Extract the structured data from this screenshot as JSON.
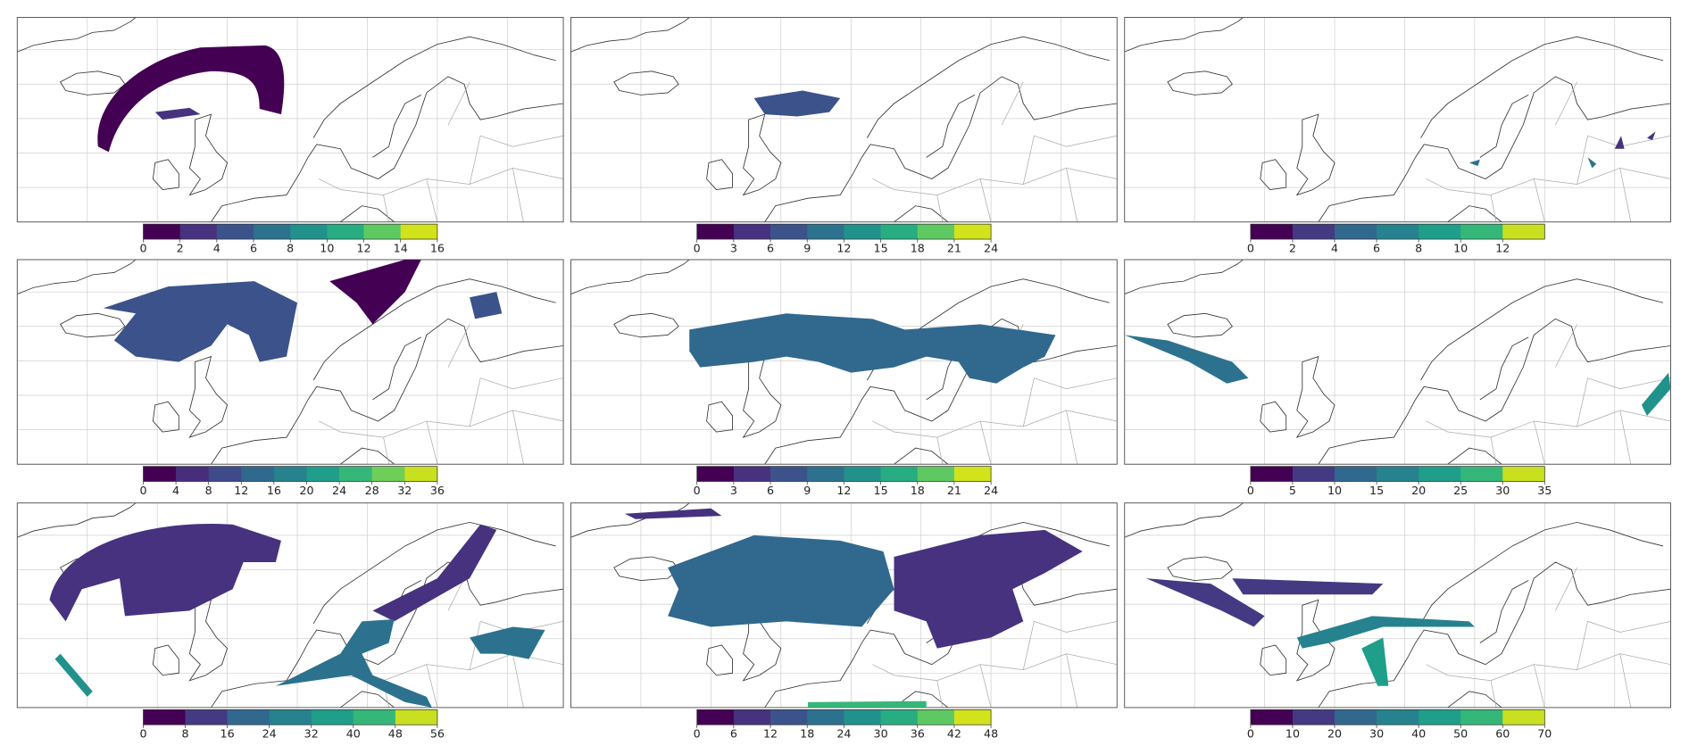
{
  "panels": [
    {
      "colorbar": {
        "lim": [
          0,
          16
        ],
        "ticks": [
          0,
          2,
          4,
          6,
          8,
          10,
          12,
          14,
          16
        ],
        "colors": [
          "#440154",
          "#46327e",
          "#3b528b",
          "#2c728e",
          "#21918c",
          "#27ad81",
          "#5ec962",
          "#d2e21b"
        ]
      }
    },
    {
      "colorbar": {
        "lim": [
          0,
          24
        ],
        "ticks": [
          0,
          3,
          6,
          9,
          12,
          15,
          18,
          21,
          24
        ],
        "colors": [
          "#440154",
          "#46327e",
          "#3b528b",
          "#2c728e",
          "#21918c",
          "#27ad81",
          "#5ec962",
          "#d2e21b"
        ]
      }
    },
    {
      "colorbar": {
        "lim": [
          0,
          14
        ],
        "ticks": [
          0,
          2,
          4,
          6,
          8,
          10,
          12
        ],
        "colors": [
          "#440154",
          "#443a83",
          "#31688e",
          "#26828e",
          "#1f9e89",
          "#35b779",
          "#c8e020"
        ]
      }
    },
    {
      "colorbar": {
        "lim": [
          0,
          36
        ],
        "ticks": [
          0,
          4,
          8,
          12,
          16,
          20,
          24,
          28,
          32,
          36
        ],
        "colors": [
          "#440154",
          "#472d7b",
          "#3e4a89",
          "#31688e",
          "#26828e",
          "#1f9e89",
          "#35b779",
          "#6ece58",
          "#c8e020"
        ]
      }
    },
    {
      "colorbar": {
        "lim": [
          0,
          24
        ],
        "ticks": [
          0,
          3,
          6,
          9,
          12,
          15,
          18,
          21,
          24
        ],
        "colors": [
          "#440154",
          "#46327e",
          "#3b528b",
          "#2c728e",
          "#21918c",
          "#27ad81",
          "#5ec962",
          "#d2e21b"
        ]
      }
    },
    {
      "colorbar": {
        "lim": [
          0,
          35
        ],
        "ticks": [
          0,
          5,
          10,
          15,
          20,
          25,
          30,
          35
        ],
        "colors": [
          "#440154",
          "#443a83",
          "#31688e",
          "#26828e",
          "#1f9e89",
          "#35b779",
          "#c8e020"
        ]
      }
    },
    {
      "colorbar": {
        "lim": [
          0,
          56
        ],
        "ticks": [
          0,
          8,
          16,
          24,
          32,
          40,
          48,
          56
        ],
        "colors": [
          "#440154",
          "#443a83",
          "#31688e",
          "#26828e",
          "#1f9e89",
          "#35b779",
          "#c8e020"
        ]
      }
    },
    {
      "colorbar": {
        "lim": [
          0,
          48
        ],
        "ticks": [
          0,
          6,
          12,
          18,
          24,
          30,
          36,
          42,
          48
        ],
        "colors": [
          "#440154",
          "#46327e",
          "#3b528b",
          "#2c728e",
          "#21918c",
          "#27ad81",
          "#5ec962",
          "#d2e21b"
        ]
      }
    },
    {
      "colorbar": {
        "lim": [
          0,
          70
        ],
        "ticks": [
          0,
          10,
          20,
          30,
          40,
          50,
          60,
          70
        ],
        "colors": [
          "#440154",
          "#443a83",
          "#31688e",
          "#26828e",
          "#1f9e89",
          "#35b779",
          "#c8e020"
        ]
      }
    }
  ]
}
